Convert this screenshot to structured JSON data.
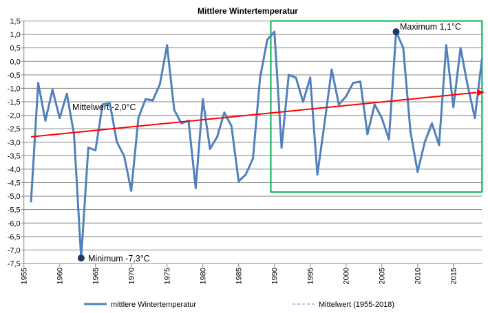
{
  "chart_data": {
    "type": "line",
    "title": "Mittlere Wintertemperatur",
    "xlabel": "",
    "ylabel": "",
    "xlim": [
      1955,
      2019
    ],
    "ylim": [
      -7.5,
      1.5
    ],
    "x_ticks": [
      1955,
      1960,
      1965,
      1970,
      1975,
      1980,
      1985,
      1990,
      1995,
      2000,
      2005,
      2010,
      2015
    ],
    "y_ticks": [
      "1,5",
      "1,0",
      "0,5",
      "0,0",
      "-0,5",
      "-1,0",
      "-1,5",
      "-2,0",
      "-2,5",
      "-3,0",
      "-3,5",
      "-4,0",
      "-4,5",
      "-5,0",
      "-5,5",
      "-6,0",
      "-6,5",
      "-7,0",
      "-7,5"
    ],
    "y_tick_values": [
      1.5,
      1.0,
      0.5,
      0.0,
      -0.5,
      -1.0,
      -1.5,
      -2.0,
      -2.5,
      -3.0,
      -3.5,
      -4.0,
      -4.5,
      -5.0,
      -5.5,
      -6.0,
      -6.5,
      -7.0,
      -7.5
    ],
    "grid": "horizontal",
    "legend_position": "bottom",
    "series": [
      {
        "name": "mittlere Wintertemperatur",
        "color": "#4f81bd",
        "x": [
          1956,
          1957,
          1958,
          1959,
          1960,
          1961,
          1962,
          1963,
          1964,
          1965,
          1966,
          1967,
          1968,
          1969,
          1970,
          1971,
          1972,
          1973,
          1974,
          1975,
          1976,
          1977,
          1978,
          1979,
          1980,
          1981,
          1982,
          1983,
          1984,
          1985,
          1986,
          1987,
          1988,
          1989,
          1990,
          1991,
          1992,
          1993,
          1994,
          1995,
          1996,
          1997,
          1998,
          1999,
          2000,
          2001,
          2002,
          2003,
          2004,
          2005,
          2006,
          2007,
          2008,
          2009,
          2010,
          2011,
          2012,
          2013,
          2014,
          2015,
          2016,
          2017,
          2018,
          2019
        ],
        "values": [
          -5.2,
          -0.8,
          -2.2,
          -1.05,
          -2.1,
          -1.2,
          -2.7,
          -7.3,
          -3.2,
          -3.3,
          -1.6,
          -1.55,
          -3.0,
          -3.5,
          -4.8,
          -2.1,
          -1.4,
          -1.45,
          -0.85,
          0.6,
          -1.8,
          -2.3,
          -2.2,
          -4.7,
          -1.4,
          -3.25,
          -2.8,
          -1.9,
          -2.4,
          -4.45,
          -4.2,
          -3.6,
          -0.6,
          0.8,
          1.1,
          -3.2,
          -0.5,
          -0.6,
          -1.5,
          -0.6,
          -4.2,
          -2.3,
          -0.3,
          -1.6,
          -1.3,
          -0.8,
          -0.75,
          -2.7,
          -1.6,
          -2.1,
          -2.9,
          1.1,
          0.5,
          -2.6,
          -4.1,
          -3.0,
          -2.3,
          -3.1,
          0.6,
          -1.7,
          0.5,
          -0.9,
          -2.1,
          0.1
        ]
      },
      {
        "name": "Mittelwert (1955-2018)",
        "color": "#95b3d7",
        "style": "dashed",
        "value": -2.0
      }
    ],
    "trend_line": {
      "color": "#ff0000",
      "from": [
        1956,
        -2.8
      ],
      "to": [
        2019,
        -1.15
      ],
      "arrow": true
    },
    "highlight_box": {
      "color": "#00b050",
      "x_range": [
        1989.5,
        2019
      ],
      "y_range": [
        -4.85,
        1.5
      ]
    },
    "annotations": [
      {
        "text": "Mittelwert -2,0°C"
      },
      {
        "text": "Minimum -7,3°C",
        "x": 1963,
        "y": -7.3
      },
      {
        "text": "Maximum 1,1°C",
        "x": 2007,
        "y": 1.1
      }
    ],
    "marker_color": "#1f3864"
  }
}
